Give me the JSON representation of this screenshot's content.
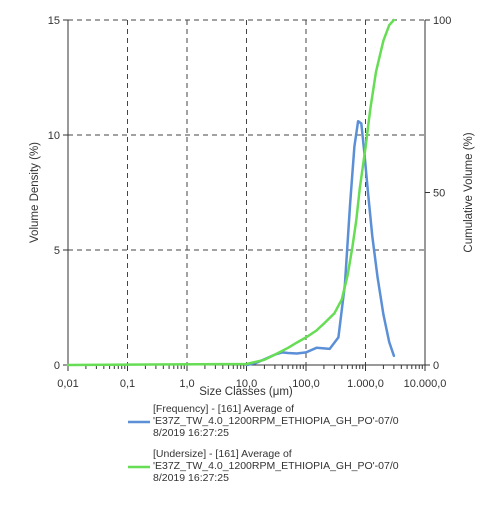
{
  "chart_data": {
    "type": "line",
    "xlabel": "Size Classes (μm)",
    "ylabel_left": "Volume Density (%)",
    "ylabel_right": "Cumulative Volume (%)",
    "x_scale": "log",
    "xlim": [
      0.01,
      10000
    ],
    "ylim_left": [
      0,
      15
    ],
    "ylim_right": [
      0,
      100
    ],
    "x_ticks": [
      0.01,
      0.1,
      1,
      10,
      100,
      1000,
      10000
    ],
    "x_tick_labels": [
      "0,01",
      "0,1",
      "1,0",
      "10,0",
      "100,0",
      "1.000,0",
      "10.000,0"
    ],
    "y_left_ticks": [
      0,
      5,
      10,
      15
    ],
    "y_left_tick_labels": [
      "0",
      "5",
      "10",
      "15"
    ],
    "y_right_ticks": [
      0,
      50,
      100
    ],
    "y_right_tick_labels": [
      "0",
      "50",
      "100"
    ],
    "grid": true,
    "legend_position": "bottom",
    "series": [
      {
        "legend_lines": [
          "[Frequency] - [161] Average of",
          "'E37Z_TW_4.0_1200RPM_ETHIOPIA_GH_PO'-07/0",
          "8/2019 16:27:25"
        ],
        "axis": "left",
        "color": "#5b8fd6",
        "x": [
          10,
          14,
          20,
          30,
          40,
          50,
          70,
          100,
          150,
          200,
          250,
          350,
          450,
          550,
          650,
          750,
          850,
          950,
          1100,
          1300,
          1600,
          2000,
          2500,
          3000
        ],
        "y": [
          0.0,
          0.08,
          0.25,
          0.45,
          0.55,
          0.52,
          0.5,
          0.55,
          0.75,
          0.72,
          0.7,
          1.2,
          3.5,
          7.0,
          9.5,
          10.6,
          10.5,
          9.3,
          7.5,
          5.6,
          3.8,
          2.2,
          1.0,
          0.4
        ]
      },
      {
        "legend_lines": [
          "[Undersize] - [161] Average of",
          "'E37Z_TW_4.0_1200RPM_ETHIOPIA_GH_PO'-07/0",
          "8/2019 16:27:25"
        ],
        "axis": "right",
        "color": "#66dd55",
        "x": [
          0.01,
          10,
          20,
          30,
          50,
          70,
          100,
          150,
          200,
          300,
          400,
          500,
          600,
          700,
          800,
          1000,
          1200,
          1500,
          2000,
          2500,
          3000
        ],
        "y": [
          0,
          0.3,
          1.5,
          3.0,
          5.0,
          6.5,
          8.0,
          10.0,
          12.0,
          15.0,
          19.0,
          26.0,
          34.0,
          42.0,
          51.0,
          63.0,
          74.0,
          85.0,
          94.0,
          98.5,
          100
        ]
      }
    ]
  }
}
